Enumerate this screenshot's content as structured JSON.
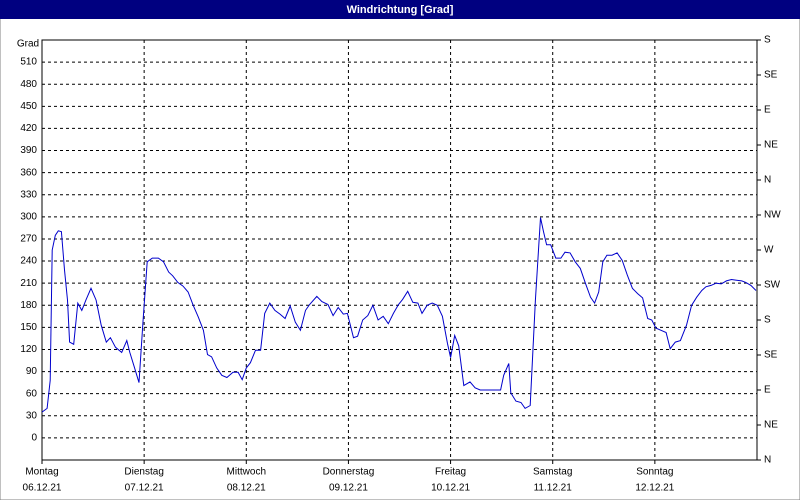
{
  "chart_data": {
    "type": "line",
    "title": "Windrichtung [Grad]",
    "y_label": "Grad",
    "color": "#0000cc",
    "grid": true,
    "xlim": [
      0,
      7
    ],
    "xticks": [
      {
        "value": 0,
        "label": [
          "Montag",
          "06.12.21"
        ]
      },
      {
        "value": 1,
        "label": [
          "Dienstag",
          "07.12.21"
        ]
      },
      {
        "value": 2,
        "label": [
          "Mittwoch",
          "08.12.21"
        ]
      },
      {
        "value": 3,
        "label": [
          "Donnerstag",
          "09.12.21"
        ]
      },
      {
        "value": 4,
        "label": [
          "Freitag",
          "10.12.21"
        ]
      },
      {
        "value": 5,
        "label": [
          "Samstag",
          "11.12.21"
        ]
      },
      {
        "value": 6,
        "label": [
          "Sonntag",
          "12.12.21"
        ]
      }
    ],
    "ylim": [
      -30,
      540
    ],
    "yticks": [
      0,
      30,
      60,
      90,
      120,
      150,
      180,
      210,
      240,
      270,
      300,
      330,
      360,
      390,
      420,
      450,
      480,
      510
    ],
    "y2lim": [
      0,
      540
    ],
    "y2ticks": [
      {
        "value": 0,
        "label": "N"
      },
      {
        "value": 45,
        "label": "NE"
      },
      {
        "value": 90,
        "label": "E"
      },
      {
        "value": 135,
        "label": "SE"
      },
      {
        "value": 180,
        "label": "S"
      },
      {
        "value": 225,
        "label": "SW"
      },
      {
        "value": 270,
        "label": "W"
      },
      {
        "value": 315,
        "label": "NW"
      },
      {
        "value": 360,
        "label": "N"
      },
      {
        "value": 405,
        "label": "NE"
      },
      {
        "value": 450,
        "label": "E"
      },
      {
        "value": 495,
        "label": "SE"
      },
      {
        "value": 540,
        "label": "S"
      }
    ],
    "x": [
      0,
      0.05,
      0.08,
      0.1,
      0.13,
      0.16,
      0.19,
      0.22,
      0.25,
      0.27,
      0.31,
      0.35,
      0.39,
      0.43,
      0.48,
      0.53,
      0.58,
      0.63,
      0.67,
      0.72,
      0.78,
      0.83,
      0.86,
      0.9,
      0.95,
      0.99,
      1.03,
      1.08,
      1.14,
      1.19,
      1.24,
      1.28,
      1.33,
      1.38,
      1.43,
      1.48,
      1.53,
      1.58,
      1.62,
      1.66,
      1.71,
      1.76,
      1.81,
      1.87,
      1.92,
      1.96,
      2.0,
      2.04,
      2.09,
      2.14,
      2.18,
      2.23,
      2.28,
      2.33,
      2.38,
      2.43,
      2.48,
      2.53,
      2.58,
      2.62,
      2.69,
      2.74,
      2.8,
      2.85,
      2.9,
      2.95,
      2.99,
      3.05,
      3.09,
      3.14,
      3.19,
      3.24,
      3.29,
      3.34,
      3.39,
      3.44,
      3.49,
      3.53,
      3.58,
      3.63,
      3.68,
      3.72,
      3.77,
      3.82,
      3.87,
      3.92,
      3.97,
      4.0,
      4.04,
      4.08,
      4.13,
      4.19,
      4.24,
      4.29,
      4.36,
      4.43,
      4.49,
      4.52,
      4.57,
      4.59,
      4.64,
      4.69,
      4.73,
      4.78,
      4.83,
      4.88,
      4.91,
      4.94,
      4.98,
      5.03,
      5.08,
      5.12,
      5.17,
      5.22,
      5.27,
      5.32,
      5.37,
      5.41,
      5.45,
      5.49,
      5.53,
      5.58,
      5.63,
      5.68,
      5.73,
      5.78,
      5.83,
      5.88,
      5.93,
      5.97,
      6.01,
      6.06,
      6.11,
      6.15,
      6.2,
      6.25,
      6.31,
      6.36,
      6.41,
      6.46,
      6.5,
      6.55,
      6.6,
      6.65,
      6.7,
      6.75,
      6.8,
      6.85,
      6.89,
      6.94,
      6.99
    ],
    "values": [
      35,
      40,
      78,
      255,
      275,
      281,
      280,
      228,
      187,
      130,
      127,
      183,
      173,
      187,
      203,
      187,
      153,
      130,
      136,
      123,
      116,
      132,
      116,
      98,
      75,
      160,
      239,
      244,
      244,
      239,
      225,
      220,
      211,
      206,
      198,
      180,
      164,
      146,
      113,
      110,
      95,
      85,
      82,
      89,
      89,
      79,
      95,
      102,
      119,
      119,
      169,
      183,
      173,
      168,
      162,
      179,
      157,
      146,
      173,
      181,
      192,
      185,
      181,
      166,
      177,
      168,
      169,
      136,
      138,
      160,
      166,
      180,
      160,
      165,
      155,
      169,
      181,
      188,
      199,
      184,
      183,
      169,
      180,
      183,
      180,
      165,
      128,
      109,
      139,
      125,
      71,
      76,
      68,
      65,
      65,
      65,
      65,
      85,
      101,
      61,
      50,
      48,
      40,
      44,
      187,
      299,
      280,
      262,
      262,
      244,
      244,
      252,
      251,
      239,
      230,
      210,
      191,
      183,
      198,
      239,
      248,
      248,
      251,
      241,
      221,
      203,
      196,
      190,
      162,
      160,
      149,
      146,
      143,
      121,
      130,
      132,
      153,
      180,
      191,
      200,
      205,
      207,
      210,
      209,
      213,
      215,
      214,
      213,
      211,
      207,
      200
    ]
  }
}
